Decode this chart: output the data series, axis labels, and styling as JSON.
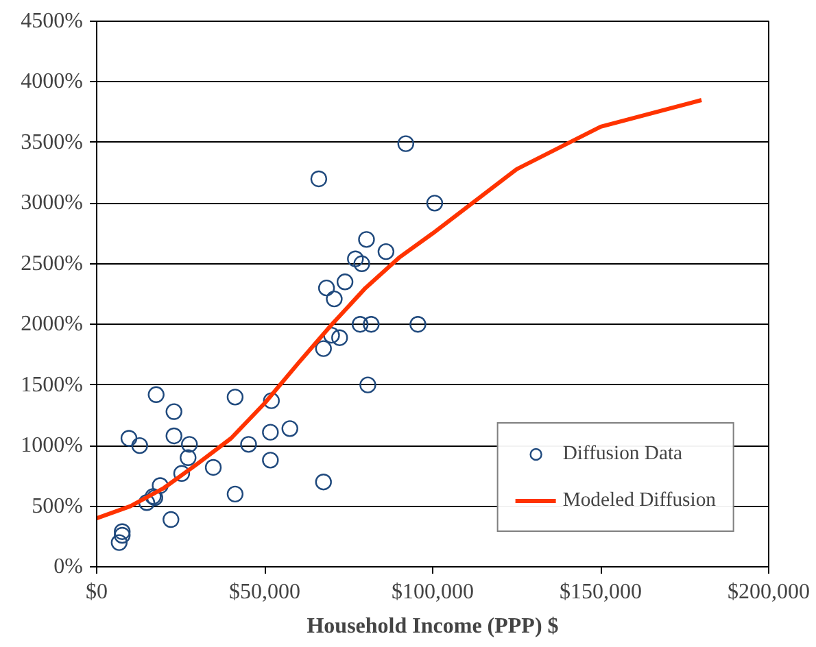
{
  "chart_data": {
    "type": "scatter",
    "xlabel": "Household Income (PPP) $",
    "xlim": [
      0,
      200000
    ],
    "xticks": [
      {
        "value": 0,
        "label": "$0"
      },
      {
        "value": 50000,
        "label": "$50,000"
      },
      {
        "value": 100000,
        "label": "$100,000"
      },
      {
        "value": 150000,
        "label": "$150,000"
      },
      {
        "value": 200000,
        "label": "$200,000"
      }
    ],
    "ylim": [
      0,
      4500
    ],
    "yticks": [
      {
        "value": 0,
        "label": "0%"
      },
      {
        "value": 500,
        "label": "500%"
      },
      {
        "value": 1000,
        "label": "1000%"
      },
      {
        "value": 1500,
        "label": "1500%"
      },
      {
        "value": 2000,
        "label": "2000%"
      },
      {
        "value": 2500,
        "label": "2500%"
      },
      {
        "value": 3000,
        "label": "3000%"
      },
      {
        "value": 3500,
        "label": "3500%"
      },
      {
        "value": 4000,
        "label": "4000%"
      },
      {
        "value": 4500,
        "label": "4500%"
      }
    ],
    "grid": "y",
    "legend": "bottom right",
    "series": [
      {
        "name": "Diffusion Data",
        "marker": "circle",
        "color": "#1f497d",
        "x": [
          9600,
          12800,
          17700,
          23000,
          23000,
          27600,
          27200,
          25300,
          18900,
          16800,
          14900,
          17300,
          22100,
          6700,
          7600,
          7600,
          34700,
          41200,
          41200,
          45200,
          51700,
          51700,
          52000,
          57500,
          67500,
          67500,
          69900,
          72300,
          80700,
          78400,
          81700,
          95600,
          70700,
          68400,
          73900,
          77000,
          78900,
          80300,
          86100,
          66100,
          92000,
          100600
        ],
        "values": [
          1060,
          1000,
          1420,
          1280,
          1080,
          1010,
          900,
          770,
          670,
          580,
          530,
          570,
          390,
          200,
          290,
          260,
          820,
          1400,
          600,
          1010,
          1110,
          880,
          1370,
          1140,
          700,
          1800,
          1910,
          1890,
          1500,
          2000,
          2000,
          2000,
          2210,
          2300,
          2350,
          2540,
          2500,
          2700,
          2600,
          3200,
          3490,
          3000
        ]
      },
      {
        "name": "Modeled Diffusion",
        "type": "line",
        "line_style": "solid",
        "color": "#ff3300",
        "x": [
          0,
          10000,
          20000,
          30000,
          40000,
          50000,
          60000,
          70000,
          80000,
          90000,
          100000,
          125000,
          150000,
          180000
        ],
        "values": [
          400,
          500,
          650,
          850,
          1060,
          1350,
          1680,
          2000,
          2300,
          2550,
          2750,
          3280,
          3630,
          3850
        ]
      }
    ]
  }
}
